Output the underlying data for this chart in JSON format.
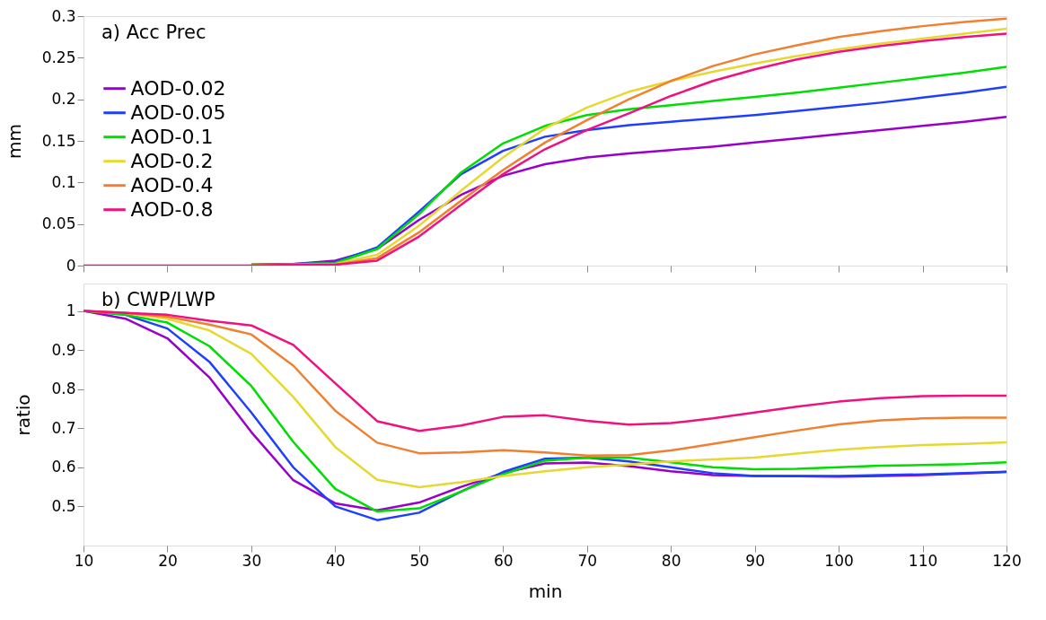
{
  "chart_data": [
    {
      "type": "line",
      "annotations": [
        "a) Acc Prec"
      ],
      "ylabel": "mm",
      "xlim": [
        10,
        120
      ],
      "xticks": [
        10,
        20,
        30,
        40,
        50,
        60,
        70,
        80,
        90,
        100,
        110,
        120
      ],
      "ylim": [
        0,
        0.3
      ],
      "yticks": [
        0,
        0.05,
        0.1,
        0.15,
        0.2,
        0.25,
        0.3
      ],
      "tick_labels": "y",
      "grid": false,
      "legend": "left",
      "marker": "none",
      "line_style": "solid",
      "x": [
        10,
        15,
        20,
        25,
        30,
        35,
        40,
        45,
        50,
        55,
        60,
        65,
        70,
        75,
        80,
        85,
        90,
        95,
        100,
        105,
        110,
        115,
        120
      ],
      "series": [
        {
          "name": "AOD-0.02",
          "color": "#9900cc",
          "values": [
            null,
            null,
            null,
            null,
            0.001,
            0.002,
            0.006,
            0.02,
            0.055,
            0.085,
            0.108,
            0.122,
            0.13,
            0.135,
            0.139,
            0.143,
            0.148,
            0.153,
            0.158,
            0.163,
            0.168,
            0.173,
            0.179
          ]
        },
        {
          "name": "AOD-0.05",
          "color": "#1f3fff",
          "values": [
            null,
            null,
            null,
            null,
            0.001,
            0.002,
            0.004,
            0.022,
            0.065,
            0.11,
            0.138,
            0.155,
            0.163,
            0.169,
            0.173,
            0.177,
            0.181,
            0.186,
            0.191,
            0.196,
            0.202,
            0.208,
            0.215
          ]
        },
        {
          "name": "AOD-0.1",
          "color": "#00dd00",
          "values": [
            null,
            null,
            null,
            null,
            0.001,
            0.002,
            0.003,
            0.02,
            0.062,
            0.112,
            0.147,
            0.168,
            0.181,
            0.188,
            0.193,
            0.198,
            0.203,
            0.208,
            0.214,
            0.22,
            0.226,
            0.232,
            0.239
          ]
        },
        {
          "name": "AOD-0.2",
          "color": "#e6d830",
          "values": [
            null,
            null,
            null,
            null,
            0,
            0.001,
            0.002,
            0.013,
            0.048,
            0.09,
            0.13,
            0.165,
            0.19,
            0.209,
            0.222,
            0.233,
            0.243,
            0.252,
            0.26,
            0.267,
            0.273,
            0.279,
            0.285
          ]
        },
        {
          "name": "AOD-0.4",
          "color": "#f08030",
          "values": [
            null,
            null,
            null,
            null,
            0,
            0.001,
            0.001,
            0.009,
            0.04,
            0.078,
            0.115,
            0.148,
            0.175,
            0.2,
            0.222,
            0.24,
            0.254,
            0.265,
            0.275,
            0.282,
            0.288,
            0.293,
            0.297
          ]
        },
        {
          "name": "AOD-0.8",
          "color": "#f0107f",
          "values": [
            0,
            0,
            0,
            0,
            0,
            0.001,
            0.001,
            0.006,
            0.035,
            0.073,
            0.11,
            0.14,
            0.163,
            0.183,
            0.204,
            0.222,
            0.236,
            0.248,
            0.257,
            0.264,
            0.27,
            0.275,
            0.279
          ]
        }
      ]
    },
    {
      "type": "line",
      "annotations": [
        "b) CWP/LWP"
      ],
      "xlabel": "min",
      "ylabel": "ratio",
      "xlim": [
        10,
        120
      ],
      "xticks": [
        10,
        20,
        30,
        40,
        50,
        60,
        70,
        80,
        90,
        100,
        110,
        120
      ],
      "ylim": [
        0.4,
        1.07
      ],
      "yticks": [
        0.5,
        0.6,
        0.7,
        0.8,
        0.9,
        1
      ],
      "grid": false,
      "marker": "none",
      "line_style": "solid",
      "x": [
        10,
        15,
        20,
        25,
        30,
        35,
        40,
        45,
        50,
        55,
        60,
        65,
        70,
        75,
        80,
        85,
        90,
        95,
        100,
        105,
        110,
        115,
        120
      ],
      "series": [
        {
          "color": "#9900cc",
          "values": [
            1,
            0.98,
            0.93,
            0.83,
            0.69,
            0.567,
            0.508,
            0.49,
            0.51,
            0.55,
            0.585,
            0.61,
            0.612,
            0.603,
            0.59,
            0.58,
            0.578,
            0.577,
            0.576,
            0.578,
            0.58,
            0.584,
            0.588
          ]
        },
        {
          "color": "#1f3fff",
          "values": [
            1,
            0.99,
            0.955,
            0.87,
            0.74,
            0.6,
            0.5,
            0.465,
            0.484,
            0.538,
            0.588,
            0.622,
            0.625,
            0.615,
            0.6,
            0.585,
            0.578,
            0.578,
            0.578,
            0.58,
            0.582,
            0.585,
            0.589
          ]
        },
        {
          "color": "#00dd00",
          "values": [
            1,
            0.99,
            0.97,
            0.91,
            0.808,
            0.665,
            0.545,
            0.487,
            0.495,
            0.538,
            0.582,
            0.617,
            0.625,
            0.625,
            0.613,
            0.6,
            0.595,
            0.596,
            0.6,
            0.604,
            0.606,
            0.608,
            0.613
          ]
        },
        {
          "color": "#e6d830",
          "values": [
            1,
            0.995,
            0.98,
            0.95,
            0.89,
            0.78,
            0.652,
            0.568,
            0.549,
            0.562,
            0.578,
            0.59,
            0.6,
            0.607,
            0.615,
            0.62,
            0.625,
            0.635,
            0.645,
            0.652,
            0.657,
            0.66,
            0.664
          ]
        },
        {
          "color": "#f08030",
          "values": [
            1,
            0.995,
            0.985,
            0.965,
            0.94,
            0.86,
            0.745,
            0.663,
            0.636,
            0.638,
            0.644,
            0.638,
            0.63,
            0.631,
            0.643,
            0.66,
            0.677,
            0.694,
            0.71,
            0.72,
            0.725,
            0.727,
            0.727
          ]
        },
        {
          "color": "#f0107f",
          "values": [
            1,
            0.995,
            0.99,
            0.975,
            0.963,
            0.913,
            0.815,
            0.718,
            0.693,
            0.707,
            0.729,
            0.733,
            0.719,
            0.709,
            0.713,
            0.725,
            0.74,
            0.755,
            0.768,
            0.777,
            0.782,
            0.783,
            0.783
          ]
        }
      ]
    }
  ]
}
